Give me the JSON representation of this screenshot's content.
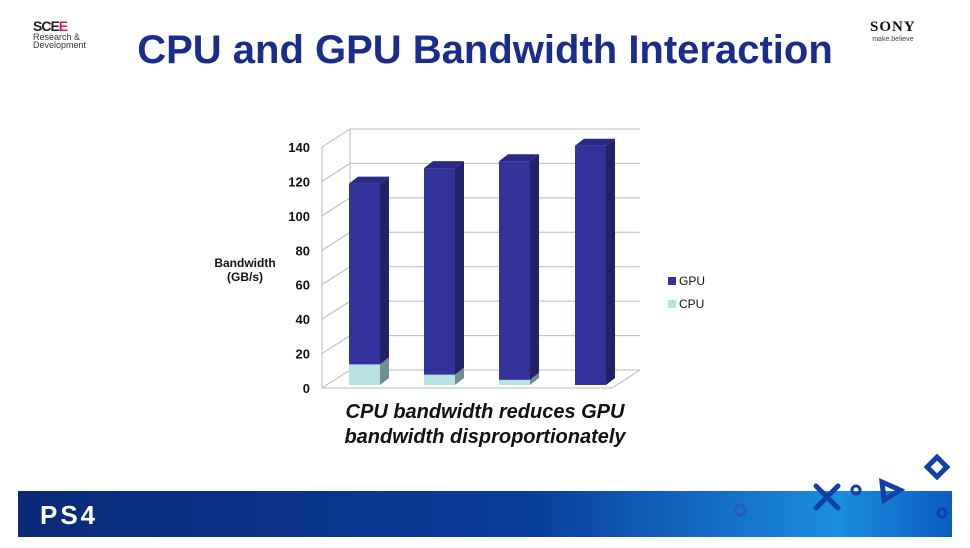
{
  "slide": {
    "title": "CPU and GPU Bandwidth Interaction",
    "caption_line1": "CPU bandwidth reduces GPU",
    "caption_line2": "bandwidth disproportionately",
    "logo_left": "SCEE R&D Research & Development",
    "logo_right": "SONY make.believe",
    "footer_logo": "PS4"
  },
  "chart_data": {
    "type": "bar",
    "stacked": true,
    "three_d": true,
    "categories": [
      "",
      "",
      "",
      ""
    ],
    "series": [
      {
        "name": "CPU",
        "values": [
          12,
          6,
          3,
          0
        ],
        "color": "#b8e2e2"
      },
      {
        "name": "GPU",
        "values": [
          105,
          120,
          127,
          139
        ],
        "color": "#32329a"
      }
    ],
    "ylabel_line1": "Bandwidth",
    "ylabel_line2": "(GB/s)",
    "ylim": [
      0,
      140
    ],
    "yticks": [
      0,
      20,
      40,
      60,
      80,
      100,
      120,
      140
    ],
    "grid": true,
    "legend_placement": "right",
    "legend": [
      "GPU",
      "CPU"
    ]
  }
}
